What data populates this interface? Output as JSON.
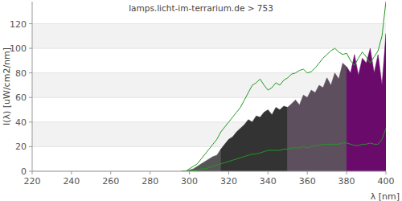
{
  "chart_data": {
    "type": "area",
    "title": "lamps.licht-im-terrarium.de > 753",
    "x_label": "λ [nm]",
    "y_label": "I(λ)  [uW/cm2/nm]",
    "xlim": [
      220,
      400
    ],
    "xticks": [
      220,
      240,
      260,
      280,
      300,
      320,
      340,
      360,
      380,
      400
    ],
    "ylim": [
      0,
      138
    ],
    "yticks": [
      0,
      20,
      40,
      60,
      80,
      100,
      120
    ],
    "grid": true,
    "series": [
      {
        "type": "area",
        "color": "#555555",
        "x": [
          296,
          298,
          300,
          302,
          304,
          306,
          308,
          310,
          312,
          314,
          316
        ],
        "values": [
          0,
          0,
          1,
          2,
          4,
          6,
          8,
          10,
          12,
          13,
          18
        ]
      },
      {
        "type": "area",
        "color": "#333333",
        "x": [
          316,
          318,
          320,
          322,
          324,
          326,
          328,
          330,
          332,
          334,
          336,
          338,
          340,
          342,
          344,
          346,
          348,
          350
        ],
        "values": [
          18,
          22,
          26,
          28,
          32,
          35,
          38,
          42,
          40,
          45,
          44,
          48,
          50,
          46,
          52,
          50,
          53,
          52
        ]
      },
      {
        "type": "area",
        "color": "#5e4f5e",
        "x": [
          350,
          352,
          354,
          356,
          358,
          360,
          362,
          364,
          366,
          368,
          370,
          372,
          374,
          376,
          378,
          380
        ],
        "values": [
          52,
          55,
          58,
          54,
          62,
          60,
          66,
          64,
          70,
          68,
          76,
          70,
          80,
          75,
          88,
          85
        ]
      },
      {
        "type": "area",
        "color": "#6a0a6a",
        "x": [
          380,
          382,
          384,
          386,
          388,
          390,
          392,
          394,
          396,
          398,
          400
        ],
        "values": [
          85,
          80,
          95,
          78,
          92,
          88,
          100,
          80,
          95,
          70,
          112
        ]
      },
      {
        "type": "line",
        "color": "#229922",
        "x": [
          296,
          298,
          300,
          302,
          304,
          306,
          308,
          310,
          312,
          314,
          316,
          318,
          320,
          322,
          324,
          326,
          328,
          330,
          332,
          334,
          336,
          338,
          340,
          342,
          344,
          346,
          348,
          350,
          352,
          354,
          356,
          358,
          360,
          362,
          364,
          366,
          368,
          370,
          372,
          374,
          376,
          378,
          380,
          382,
          384,
          386,
          388,
          390,
          392,
          394,
          396,
          398,
          400
        ],
        "values": [
          0,
          0,
          2,
          4,
          6,
          10,
          14,
          18,
          22,
          26,
          32,
          36,
          40,
          44,
          48,
          52,
          58,
          64,
          70,
          72,
          75,
          70,
          66,
          68,
          72,
          70,
          74,
          76,
          79,
          80,
          82,
          83,
          80,
          81,
          84,
          88,
          92,
          95,
          98,
          100,
          97,
          95,
          96,
          90,
          86,
          92,
          97,
          93,
          88,
          93,
          98,
          110,
          138
        ]
      },
      {
        "type": "line",
        "color": "#229922",
        "x": [
          296,
          298,
          300,
          302,
          304,
          306,
          308,
          310,
          312,
          314,
          316,
          318,
          320,
          322,
          324,
          326,
          328,
          330,
          332,
          334,
          336,
          338,
          340,
          342,
          344,
          346,
          348,
          350,
          352,
          354,
          356,
          358,
          360,
          362,
          364,
          366,
          368,
          370,
          372,
          374,
          376,
          378,
          380,
          382,
          384,
          386,
          388,
          390,
          392,
          394,
          396,
          398,
          400
        ],
        "values": [
          0,
          0,
          0,
          1,
          1,
          2,
          2,
          3,
          4,
          5,
          6,
          7,
          8,
          9,
          10,
          11,
          12,
          13,
          14,
          14,
          15,
          16,
          17,
          17,
          17,
          17,
          18,
          18,
          19,
          19,
          19,
          20,
          19,
          20,
          21,
          21,
          22,
          22,
          22,
          22,
          22,
          23,
          23,
          22,
          21,
          21,
          22,
          22,
          23,
          22,
          22,
          26,
          35
        ]
      }
    ]
  }
}
